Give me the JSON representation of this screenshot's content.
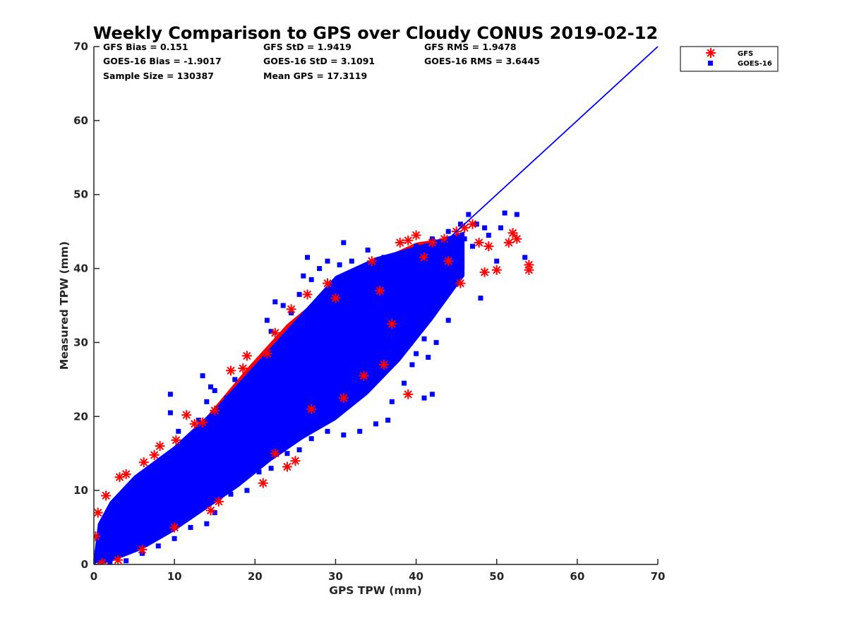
{
  "figure": {
    "title": "Weekly Comparison to GPS over Cloudy CONUS 2019-02-12"
  },
  "stats": {
    "gfs_bias": "GFS Bias = 0.151",
    "gfs_std": "GFS StD = 1.9419",
    "gfs_rms": "GFS RMS = 1.9478",
    "goes_bias": "GOES-16 Bias = -1.9017",
    "goes_std": "GOES-16 StD = 3.1091",
    "goes_rms": "GOES-16 RMS = 3.6445",
    "sample_size": "Sample Size = 130387",
    "mean_gps": "Mean GPS = 17.3119"
  },
  "legend": {
    "items": [
      {
        "label": "GFS"
      },
      {
        "label": "GOES-16"
      }
    ]
  },
  "colors": {
    "gfs": "#ff0000",
    "goes": "#0000ff",
    "one_to_one_line": "#0000ff",
    "axis": "#262626"
  },
  "chart_data": {
    "type": "scatter",
    "title": "Weekly Comparison to GPS over Cloudy CONUS 2019-02-12",
    "xlabel": "GPS TPW (mm)",
    "ylabel": "Measured TPW (mm)",
    "xlim": [
      0,
      70
    ],
    "ylim": [
      0,
      70
    ],
    "xticks": [
      0,
      10,
      20,
      30,
      40,
      50,
      60,
      70
    ],
    "yticks": [
      0,
      10,
      20,
      30,
      40,
      50,
      60,
      70
    ],
    "grid": false,
    "legend_position": "outside-top-right",
    "reference_line": {
      "x": [
        0,
        70
      ],
      "y": [
        0,
        70
      ]
    },
    "density_band_goes": {
      "upper": [
        [
          0,
          1
        ],
        [
          0.5,
          5.5
        ],
        [
          2,
          8.5
        ],
        [
          5,
          12
        ],
        [
          10,
          16
        ],
        [
          15,
          21
        ],
        [
          20,
          27
        ],
        [
          25,
          33
        ],
        [
          30,
          39
        ],
        [
          35,
          41.5
        ],
        [
          40,
          43
        ],
        [
          46,
          45
        ]
      ],
      "lower": [
        [
          46,
          39
        ],
        [
          42,
          33
        ],
        [
          38,
          27.5
        ],
        [
          34,
          23
        ],
        [
          30,
          19.5
        ],
        [
          26,
          17
        ],
        [
          22,
          14
        ],
        [
          18,
          10.5
        ],
        [
          14,
          7.5
        ],
        [
          10,
          4.5
        ],
        [
          6,
          2
        ],
        [
          2,
          0.3
        ],
        [
          0,
          0.2
        ]
      ]
    },
    "density_band_gfs": {
      "upper": [
        [
          0,
          0.5
        ],
        [
          1,
          6
        ],
        [
          4,
          10.5
        ],
        [
          9,
          15
        ],
        [
          14,
          20
        ],
        [
          19,
          26.5
        ],
        [
          24,
          32.5
        ],
        [
          29,
          37
        ],
        [
          35,
          41
        ],
        [
          40,
          43.5
        ],
        [
          46,
          44.5
        ]
      ],
      "lower": [
        [
          46,
          40
        ],
        [
          42,
          35
        ],
        [
          38,
          29
        ],
        [
          33,
          24
        ],
        [
          28,
          20
        ],
        [
          23,
          16
        ],
        [
          18,
          11.5
        ],
        [
          13,
          7
        ],
        [
          8,
          3.5
        ],
        [
          4,
          1.2
        ],
        [
          0,
          0.2
        ]
      ]
    },
    "series": [
      {
        "name": "GFS",
        "marker": "asterisk",
        "points": [
          [
            0.2,
            3.8
          ],
          [
            0.5,
            7.0
          ],
          [
            1.5,
            9.3
          ],
          [
            3.2,
            11.8
          ],
          [
            4.0,
            12.2
          ],
          [
            6.2,
            13.8
          ],
          [
            7.5,
            14.8
          ],
          [
            8.2,
            16.0
          ],
          [
            10.2,
            16.8
          ],
          [
            11.5,
            20.2
          ],
          [
            12.5,
            19.0
          ],
          [
            13.5,
            19.2
          ],
          [
            15.0,
            20.8
          ],
          [
            17.0,
            26.2
          ],
          [
            19.0,
            28.2
          ],
          [
            18.5,
            26.5
          ],
          [
            21.5,
            28.5
          ],
          [
            22.5,
            31.3
          ],
          [
            24.5,
            34.5
          ],
          [
            26.5,
            36.5
          ],
          [
            29.0,
            38.0
          ],
          [
            34.5,
            41.0
          ],
          [
            38.0,
            43.5
          ],
          [
            39.0,
            43.8
          ],
          [
            40.0,
            44.5
          ],
          [
            42.0,
            43.5
          ],
          [
            43.5,
            44.0
          ],
          [
            45.0,
            45.0
          ],
          [
            46.0,
            45.5
          ],
          [
            47.0,
            46.0
          ],
          [
            47.8,
            43.5
          ],
          [
            48.5,
            39.5
          ],
          [
            49.0,
            43.0
          ],
          [
            50.0,
            39.8
          ],
          [
            51.5,
            43.5
          ],
          [
            52.0,
            44.8
          ],
          [
            52.5,
            44.0
          ],
          [
            54.0,
            40.5
          ],
          [
            54.0,
            39.8
          ],
          [
            44.0,
            41.0
          ],
          [
            45.5,
            38.0
          ],
          [
            36.0,
            27.0
          ],
          [
            39.0,
            23.0
          ],
          [
            27.0,
            21.0
          ],
          [
            22.5,
            15.0
          ],
          [
            25.0,
            14.0
          ],
          [
            24.0,
            13.2
          ],
          [
            21.0,
            11.0
          ],
          [
            14.5,
            7.3
          ],
          [
            15.5,
            8.5
          ],
          [
            10.0,
            5.0
          ],
          [
            6.0,
            2.0
          ],
          [
            3.0,
            0.6
          ],
          [
            1.0,
            0.2
          ],
          [
            33.5,
            25.5
          ],
          [
            31.0,
            22.5
          ],
          [
            37.0,
            32.5
          ],
          [
            30.0,
            36.0
          ],
          [
            35.5,
            37.0
          ],
          [
            41.0,
            41.5
          ]
        ]
      },
      {
        "name": "GOES-16",
        "marker": "square",
        "points": [
          [
            0.3,
            1.2
          ],
          [
            1.0,
            3.0
          ],
          [
            2.0,
            5.0
          ],
          [
            3.0,
            7.5
          ],
          [
            4.5,
            9.0
          ],
          [
            6.0,
            10.5
          ],
          [
            7.5,
            12.0
          ],
          [
            9.0,
            13.5
          ],
          [
            9.5,
            20.5
          ],
          [
            9.5,
            23.0
          ],
          [
            10.5,
            18.0
          ],
          [
            12.0,
            17.0
          ],
          [
            13.0,
            19.5
          ],
          [
            14.0,
            22.0
          ],
          [
            14.5,
            24.0
          ],
          [
            13.5,
            25.5
          ],
          [
            15.0,
            23.5
          ],
          [
            16.5,
            22.5
          ],
          [
            17.5,
            25.0
          ],
          [
            19.0,
            22.0
          ],
          [
            21.0,
            27.0
          ],
          [
            22.5,
            29.0
          ],
          [
            22.0,
            31.5
          ],
          [
            22.5,
            35.5
          ],
          [
            21.5,
            33.0
          ],
          [
            23.5,
            35.0
          ],
          [
            24.5,
            34.0
          ],
          [
            25.5,
            36.5
          ],
          [
            26.0,
            39.0
          ],
          [
            27.0,
            38.5
          ],
          [
            26.5,
            41.5
          ],
          [
            28.0,
            40.0
          ],
          [
            29.0,
            41.0
          ],
          [
            30.5,
            40.5
          ],
          [
            31.0,
            43.5
          ],
          [
            32.0,
            41.0
          ],
          [
            34.0,
            42.5
          ],
          [
            36.0,
            41.5
          ],
          [
            38.0,
            42.0
          ],
          [
            40.0,
            43.0
          ],
          [
            42.0,
            44.0
          ],
          [
            44.0,
            45.0
          ],
          [
            45.5,
            46.0
          ],
          [
            46.5,
            47.3
          ],
          [
            47.5,
            46.0
          ],
          [
            48.5,
            45.5
          ],
          [
            49.0,
            44.5
          ],
          [
            50.5,
            45.5
          ],
          [
            51.0,
            47.5
          ],
          [
            52.5,
            47.3
          ],
          [
            53.5,
            41.5
          ],
          [
            50.0,
            41.0
          ],
          [
            48.0,
            36.0
          ],
          [
            44.5,
            39.0
          ],
          [
            45.0,
            41.5
          ],
          [
            43.0,
            38.0
          ],
          [
            41.0,
            30.5
          ],
          [
            42.5,
            30.0
          ],
          [
            41.5,
            28.0
          ],
          [
            40.0,
            28.5
          ],
          [
            38.5,
            24.5
          ],
          [
            37.0,
            22.0
          ],
          [
            36.5,
            19.5
          ],
          [
            35.0,
            19.0
          ],
          [
            33.0,
            18.0
          ],
          [
            31.0,
            17.5
          ],
          [
            29.0,
            18.0
          ],
          [
            27.0,
            17.0
          ],
          [
            25.5,
            15.5
          ],
          [
            24.0,
            15.0
          ],
          [
            22.0,
            13.0
          ],
          [
            20.5,
            12.5
          ],
          [
            19.0,
            10.0
          ],
          [
            17.0,
            9.5
          ],
          [
            15.0,
            7.0
          ],
          [
            14.0,
            5.5
          ],
          [
            12.0,
            5.0
          ],
          [
            10.0,
            3.5
          ],
          [
            8.0,
            2.5
          ],
          [
            6.0,
            1.5
          ],
          [
            4.0,
            0.5
          ],
          [
            2.0,
            0.2
          ],
          [
            42.0,
            23.0
          ],
          [
            41.0,
            22.5
          ],
          [
            39.5,
            27.0
          ],
          [
            38.0,
            30.0
          ],
          [
            43.5,
            36.0
          ],
          [
            44.0,
            33.0
          ],
          [
            46.0,
            44.0
          ],
          [
            47.0,
            43.0
          ],
          [
            35.5,
            35.0
          ],
          [
            32.0,
            30.0
          ],
          [
            28.0,
            28.0
          ],
          [
            25.0,
            24.0
          ],
          [
            20.0,
            19.0
          ],
          [
            16.0,
            14.5
          ],
          [
            12.0,
            11.0
          ],
          [
            8.0,
            7.0
          ],
          [
            5.0,
            4.0
          ],
          [
            30.0,
            25.0
          ]
        ]
      }
    ]
  }
}
